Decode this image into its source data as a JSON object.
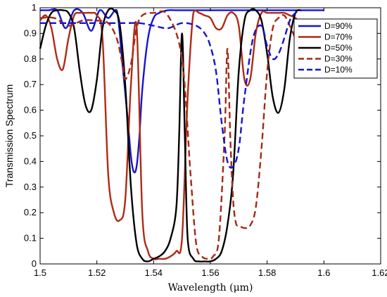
{
  "chart_data": {
    "type": "line",
    "xlabel": "Wavelength (μm)",
    "ylabel": "Transmission Spectrum",
    "xlim": [
      1.5,
      1.62
    ],
    "ylim": [
      0,
      1
    ],
    "xticks": [
      "1.5",
      "1.52",
      "1.54",
      "1.56",
      "1.58",
      "1.6",
      "1.62"
    ],
    "yticks": [
      "0",
      "0.1",
      "0.2",
      "0.3",
      "0.4",
      "0.5",
      "0.6",
      "0.7",
      "0.8",
      "0.9",
      "1"
    ],
    "grid": false,
    "legend_position": "top-right",
    "series": [
      {
        "name": "D=90%",
        "color": "#1515d0",
        "dash": "solid",
        "x": [
          1.5,
          1.503,
          1.506,
          1.509,
          1.512,
          1.515,
          1.518,
          1.521,
          1.524,
          1.527,
          1.529,
          1.531,
          1.532,
          1.533,
          1.534,
          1.535,
          1.536,
          1.538,
          1.54,
          1.542,
          1.545,
          1.548,
          1.55,
          1.553,
          1.556,
          1.56,
          1.564,
          1.568,
          1.572,
          1.576,
          1.58,
          1.585,
          1.59,
          1.595,
          1.6
        ],
        "y": [
          0.99,
          0.99,
          0.99,
          0.92,
          0.99,
          0.98,
          0.91,
          0.99,
          0.96,
          0.99,
          0.78,
          0.55,
          0.42,
          0.36,
          0.38,
          0.5,
          0.68,
          0.88,
          0.96,
          0.98,
          0.99,
          0.99,
          0.99,
          0.99,
          0.99,
          0.99,
          0.99,
          0.99,
          0.99,
          0.99,
          0.99,
          0.99,
          0.99,
          0.99,
          0.99
        ]
      },
      {
        "name": "D=70%",
        "color": "#b02a14",
        "dash": "solid",
        "x": [
          1.5,
          1.502,
          1.504,
          1.506,
          1.508,
          1.51,
          1.512,
          1.514,
          1.516,
          1.518,
          1.52,
          1.522,
          1.524,
          1.526,
          1.528,
          1.53,
          1.532,
          1.534,
          1.536,
          1.538,
          1.54,
          1.542,
          1.544,
          1.546,
          1.548,
          1.55,
          1.552,
          1.554,
          1.556,
          1.558,
          1.56,
          1.562,
          1.564,
          1.566,
          1.568,
          1.57,
          1.572,
          1.574,
          1.576,
          1.578,
          1.58,
          1.582,
          1.584,
          1.586,
          1.588,
          1.59,
          1.592
        ],
        "y": [
          0.95,
          0.97,
          0.92,
          0.8,
          0.76,
          0.88,
          0.97,
          0.98,
          0.98,
          0.98,
          0.97,
          0.88,
          0.35,
          0.2,
          0.17,
          0.25,
          0.7,
          0.93,
          0.2,
          0.05,
          0.02,
          0.02,
          0.02,
          0.03,
          0.05,
          0.1,
          0.65,
          0.98,
          0.98,
          0.97,
          0.96,
          0.92,
          0.92,
          0.97,
          0.98,
          0.93,
          0.72,
          0.72,
          0.9,
          0.98,
          0.98,
          0.98,
          0.98,
          0.98,
          0.97,
          0.96,
          0.93
        ]
      },
      {
        "name": "D=50%",
        "color": "#000000",
        "dash": "solid",
        "x": [
          1.5,
          1.502,
          1.504,
          1.506,
          1.508,
          1.51,
          1.512,
          1.514,
          1.516,
          1.518,
          1.52,
          1.522,
          1.524,
          1.526,
          1.528,
          1.53,
          1.532,
          1.534,
          1.536,
          1.538,
          1.54,
          1.542,
          1.544,
          1.546,
          1.548,
          1.549,
          1.55,
          1.551,
          1.552,
          1.554,
          1.556,
          1.558,
          1.56,
          1.562,
          1.564,
          1.566,
          1.568,
          1.57,
          1.572,
          1.574,
          1.576,
          1.578,
          1.58,
          1.582,
          1.584,
          1.586,
          1.588,
          1.59,
          1.592
        ],
        "y": [
          0.84,
          0.93,
          0.98,
          0.99,
          0.99,
          0.98,
          0.92,
          0.75,
          0.62,
          0.6,
          0.72,
          0.92,
          0.99,
          0.99,
          0.94,
          0.7,
          0.3,
          0.08,
          0.02,
          0.01,
          0.02,
          0.03,
          0.05,
          0.1,
          0.22,
          0.5,
          0.9,
          0.5,
          0.1,
          0.02,
          0.01,
          0.01,
          0.01,
          0.02,
          0.05,
          0.15,
          0.35,
          0.75,
          0.95,
          0.99,
          0.99,
          0.95,
          0.82,
          0.65,
          0.59,
          0.68,
          0.88,
          0.98,
          0.99
        ]
      },
      {
        "name": "D=30%",
        "color": "#a52a14",
        "dash": "dashed",
        "x": [
          1.5,
          1.505,
          1.51,
          1.515,
          1.52,
          1.524,
          1.527,
          1.529,
          1.53,
          1.532,
          1.534,
          1.536,
          1.54,
          1.545,
          1.55,
          1.553,
          1.555,
          1.557,
          1.559,
          1.561,
          1.563,
          1.565,
          1.566,
          1.567,
          1.568,
          1.569,
          1.57,
          1.572,
          1.574,
          1.576,
          1.578,
          1.58,
          1.582,
          1.584,
          1.586,
          1.588,
          1.59,
          1.592
        ],
        "y": [
          0.96,
          0.96,
          0.93,
          0.95,
          0.95,
          0.94,
          0.88,
          0.78,
          0.72,
          0.78,
          0.92,
          0.97,
          0.98,
          0.97,
          0.8,
          0.35,
          0.08,
          0.03,
          0.02,
          0.03,
          0.1,
          0.5,
          0.84,
          0.5,
          0.25,
          0.16,
          0.15,
          0.14,
          0.15,
          0.22,
          0.45,
          0.75,
          0.92,
          0.96,
          0.97,
          0.93,
          0.88,
          0.85
        ]
      },
      {
        "name": "D=10%",
        "color": "#1515d0",
        "dash": "dashed",
        "x": [
          1.5,
          1.51,
          1.52,
          1.53,
          1.535,
          1.54,
          1.545,
          1.55,
          1.555,
          1.558,
          1.56,
          1.562,
          1.564,
          1.566,
          1.568,
          1.57,
          1.572,
          1.575,
          1.578,
          1.58,
          1.582,
          1.584,
          1.586,
          1.588,
          1.59,
          1.592
        ],
        "y": [
          0.94,
          0.94,
          0.94,
          0.94,
          0.94,
          0.93,
          0.92,
          0.94,
          0.93,
          0.9,
          0.85,
          0.75,
          0.55,
          0.4,
          0.38,
          0.45,
          0.65,
          0.88,
          0.93,
          0.85,
          0.8,
          0.82,
          0.88,
          0.95,
          0.98,
          0.99
        ]
      }
    ]
  }
}
